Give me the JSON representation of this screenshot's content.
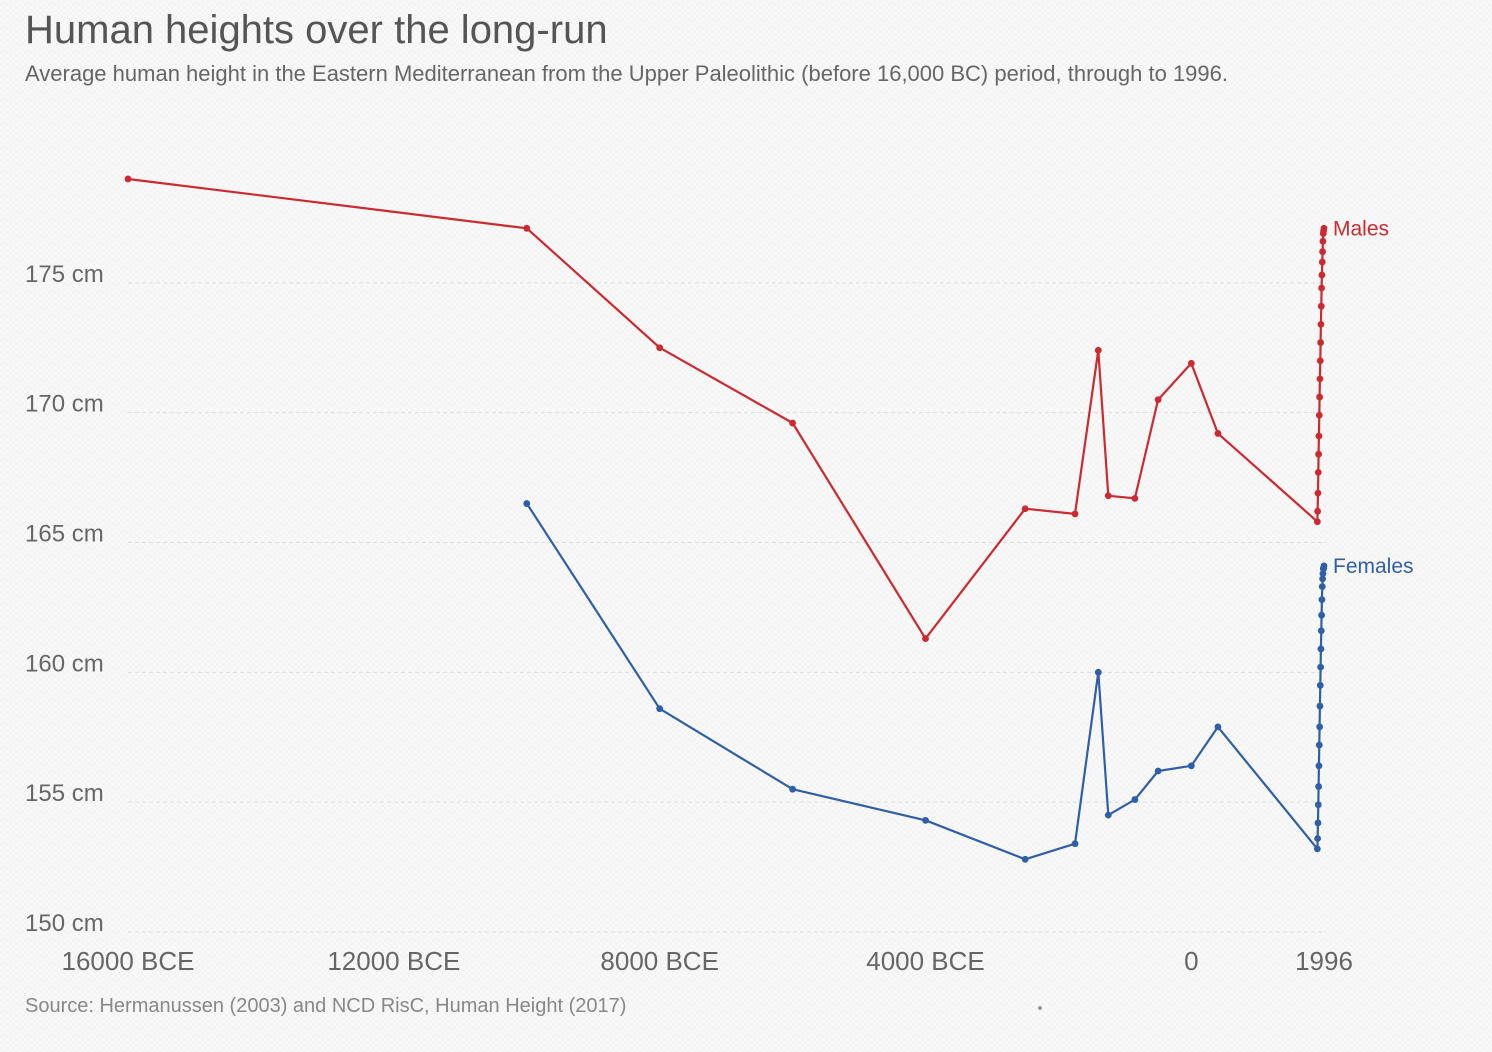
{
  "title": "Human heights over the long-run",
  "subtitle": "Average human height in the Eastern Mediterranean from the Upper Paleolithic (before 16,000 BC) period, through to 1996.",
  "source": "Source: Hermanussen (2003) and NCD RisC, Human Height (2017)",
  "colors": {
    "males": "#cc2a2f",
    "females": "#2f5fa8",
    "grid": "#dddddd",
    "text": "#555555"
  },
  "chart_data": {
    "type": "line",
    "title": "Human heights over the long-run",
    "xlabel": "",
    "ylabel": "",
    "y_unit": "cm",
    "ylim": [
      150,
      180.5
    ],
    "xlim": [
      -16000,
      1996
    ],
    "y_ticks": [
      {
        "value": 150,
        "label": "150 cm"
      },
      {
        "value": 155,
        "label": "155 cm"
      },
      {
        "value": 160,
        "label": "160 cm"
      },
      {
        "value": 165,
        "label": "165 cm"
      },
      {
        "value": 170,
        "label": "170 cm"
      },
      {
        "value": 175,
        "label": "175 cm"
      }
    ],
    "x_ticks": [
      {
        "value": -16000,
        "label": "16000 BCE"
      },
      {
        "value": -12000,
        "label": "12000 BCE"
      },
      {
        "value": -8000,
        "label": "8000 BCE"
      },
      {
        "value": -4000,
        "label": "4000 BCE"
      },
      {
        "value": 0,
        "label": "0"
      },
      {
        "value": 1996,
        "label": "1996"
      }
    ],
    "grid": "horizontal dashed",
    "series": [
      {
        "name": "Males",
        "color": "#cc2a2f",
        "x": [
          -16000,
          -10000,
          -8000,
          -6000,
          -4000,
          -2500,
          -1750,
          -1400,
          -1250,
          -850,
          -500,
          0,
          400,
          1896,
          1900,
          1905,
          1910,
          1915,
          1920,
          1925,
          1930,
          1935,
          1940,
          1945,
          1950,
          1955,
          1960,
          1965,
          1970,
          1975,
          1980,
          1985,
          1990,
          1996
        ],
        "y": [
          179.0,
          177.1,
          172.5,
          169.6,
          161.3,
          166.3,
          166.1,
          172.4,
          166.8,
          166.7,
          170.5,
          171.9,
          169.2,
          165.8,
          166.2,
          166.9,
          167.7,
          168.4,
          169.1,
          169.9,
          170.6,
          171.3,
          172.0,
          172.7,
          173.4,
          174.1,
          174.8,
          175.3,
          175.8,
          176.2,
          176.6,
          176.9,
          177.0,
          177.1
        ]
      },
      {
        "name": "Females",
        "color": "#2f5fa8",
        "x": [
          -10000,
          -8000,
          -6000,
          -4000,
          -2500,
          -1750,
          -1400,
          -1250,
          -850,
          -500,
          0,
          400,
          1896,
          1900,
          1905,
          1910,
          1915,
          1920,
          1925,
          1930,
          1935,
          1940,
          1945,
          1950,
          1955,
          1960,
          1965,
          1970,
          1975,
          1980,
          1985,
          1990,
          1996
        ],
        "y": [
          166.5,
          158.6,
          155.5,
          154.3,
          152.8,
          153.4,
          160.0,
          154.5,
          155.1,
          156.2,
          156.4,
          157.9,
          153.2,
          153.6,
          154.2,
          154.9,
          155.6,
          156.4,
          157.2,
          157.9,
          158.7,
          159.5,
          160.2,
          160.9,
          161.6,
          162.2,
          162.8,
          163.3,
          163.6,
          163.8,
          164.0,
          164.0,
          164.1
        ]
      }
    ]
  }
}
